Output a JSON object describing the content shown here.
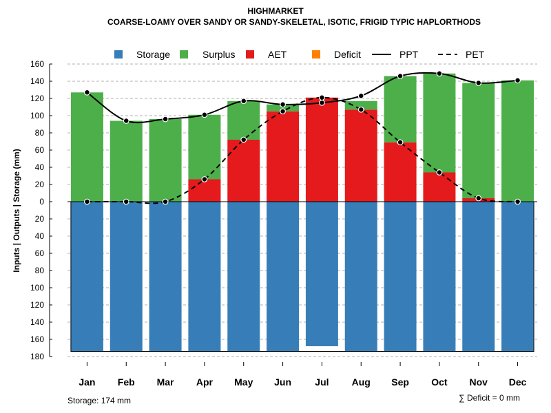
{
  "chart_data": {
    "type": "bar",
    "title": "HIGHMARKET",
    "subtitle": "COARSE-LOAMY OVER SANDY OR SANDY-SKELETAL, ISOTIC, FRIGID TYPIC HAPLORTHODS",
    "ylabel": "Inputs | Outputs | Storage    (mm)",
    "ylim": [
      -180,
      160
    ],
    "y_ticks": [
      160,
      140,
      120,
      100,
      80,
      60,
      40,
      20,
      0,
      -20,
      -40,
      -60,
      -80,
      -100,
      -120,
      -140,
      -160,
      -180
    ],
    "y_tick_labels": [
      "160",
      "140",
      "120",
      "100",
      "80",
      "60",
      "40",
      "20",
      "0",
      "20",
      "40",
      "60",
      "80",
      "100",
      "120",
      "140",
      "160",
      "180"
    ],
    "grid": true,
    "legend_position": "top",
    "categories": [
      "Jan",
      "Feb",
      "Mar",
      "Apr",
      "May",
      "Jun",
      "Jul",
      "Aug",
      "Sep",
      "Oct",
      "Nov",
      "Dec"
    ],
    "series": [
      {
        "name": "Storage",
        "type": "bar",
        "color": "#377EB8",
        "values": [
          174,
          174,
          174,
          174,
          174,
          174,
          168,
          174,
          174,
          174,
          174,
          174
        ]
      },
      {
        "name": "Surplus",
        "type": "bar",
        "color": "#4DAF4A",
        "values": [
          127,
          94,
          96,
          75,
          45,
          8,
          0,
          10,
          77,
          115,
          134,
          141
        ]
      },
      {
        "name": "AET",
        "type": "bar",
        "color": "#E41A1C",
        "values": [
          0,
          0,
          0,
          26,
          72,
          105,
          121,
          107,
          69,
          34,
          4,
          0
        ]
      },
      {
        "name": "Deficit",
        "type": "bar",
        "color": "#FF7F00",
        "values": [
          0,
          0,
          0,
          0,
          0,
          0,
          0,
          0,
          0,
          0,
          0,
          0
        ]
      },
      {
        "name": "PPT",
        "type": "line",
        "style": "solid",
        "color": "#000000",
        "values": [
          127,
          94,
          96,
          101,
          117,
          113,
          115,
          123,
          146,
          149,
          138,
          141
        ]
      },
      {
        "name": "PET",
        "type": "line",
        "style": "dashed",
        "color": "#000000",
        "values": [
          0,
          0,
          0,
          26,
          72,
          105,
          121,
          107,
          69,
          34,
          4,
          0
        ]
      }
    ],
    "annotations": {
      "storage": "Storage: 174 mm",
      "deficit": "∑ Deficit = 0 mm"
    }
  }
}
